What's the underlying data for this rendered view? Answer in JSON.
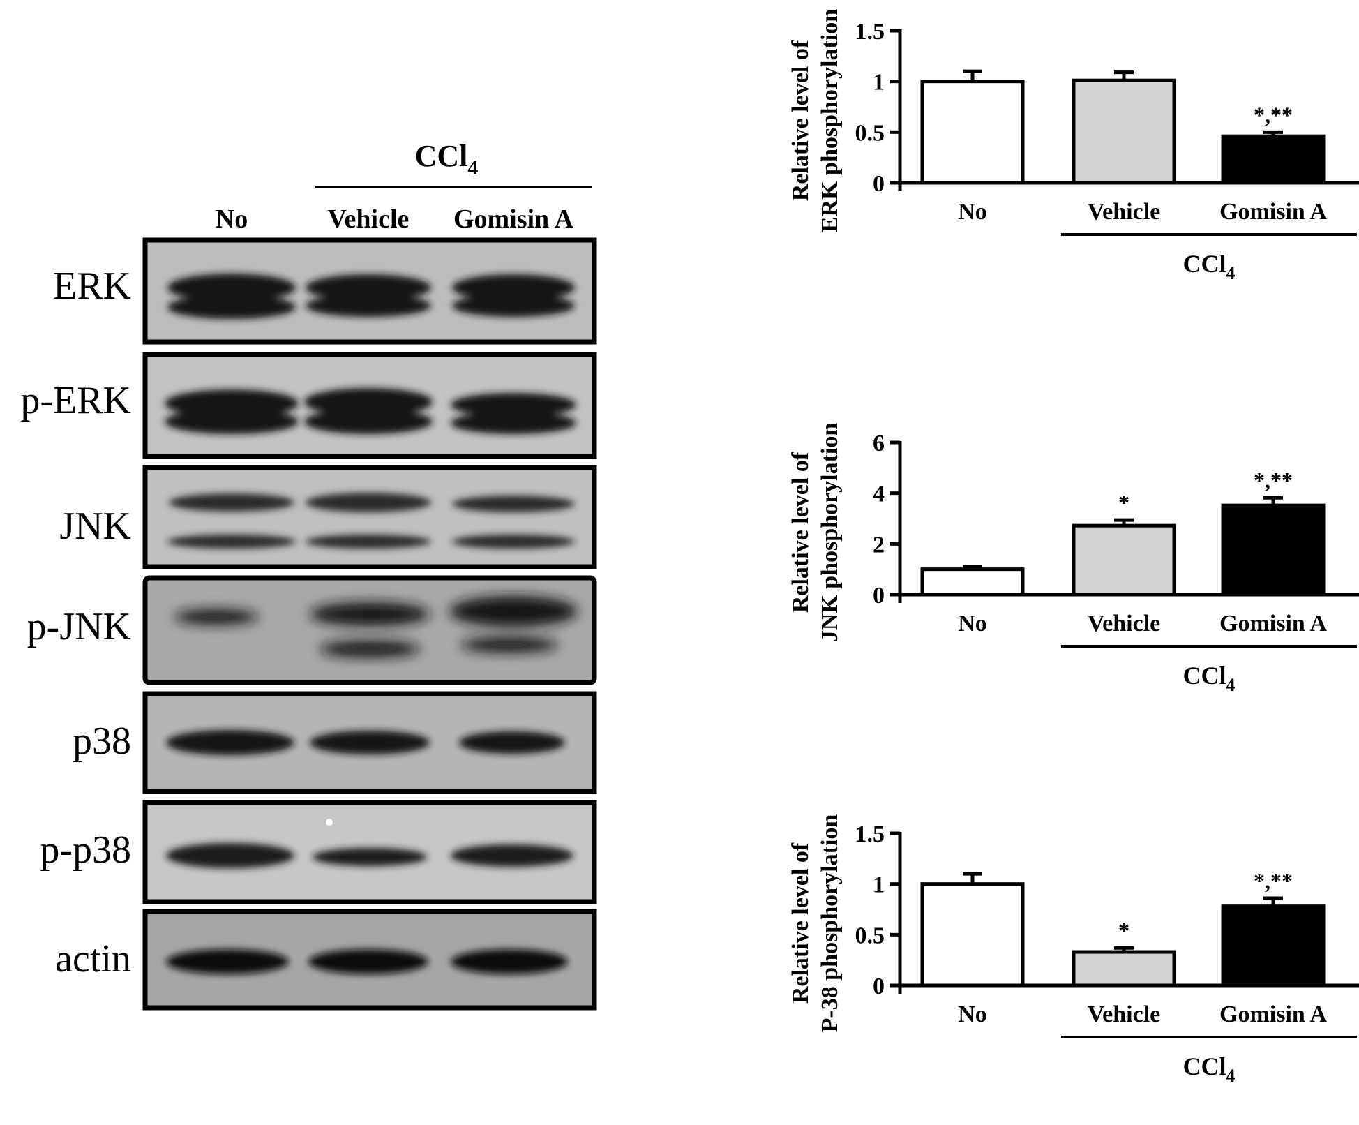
{
  "blot": {
    "treatment_label": "CCl",
    "treatment_sub": "4",
    "lanes": [
      "No",
      "Vehicle",
      "Gomisin A"
    ],
    "rows": [
      "ERK",
      "p-ERK",
      "JNK",
      "p-JNK",
      "p38",
      "p-p38",
      "actin"
    ]
  },
  "colors": {
    "No": "#ffffff",
    "Vehicle": "#d3d3d3",
    "Gomisin A": "#000000",
    "band": "#161616",
    "blot_bg": "#bcbcbc"
  },
  "chart_data": [
    {
      "type": "bar",
      "categories": [
        "No",
        "Vehicle",
        "Gomisin A"
      ],
      "values": [
        1.0,
        1.01,
        0.46
      ],
      "errors": [
        0.1,
        0.08,
        0.04
      ],
      "annotations": [
        "",
        "",
        "*,**"
      ],
      "ylabel_line1": "Relative level of",
      "ylabel_line2": "ERK phosphorylation",
      "ylim": [
        0,
        1.5
      ],
      "yticks": [
        0,
        0.5,
        1,
        1.5
      ],
      "ytick_labels": [
        "0",
        "0.5",
        "1",
        "1.5"
      ],
      "group_label": "CCl",
      "group_label_sub": "4",
      "group_categories": [
        "Vehicle",
        "Gomisin A"
      ]
    },
    {
      "type": "bar",
      "categories": [
        "No",
        "Vehicle",
        "Gomisin A"
      ],
      "values": [
        1.0,
        2.72,
        3.52
      ],
      "errors": [
        0.1,
        0.22,
        0.3
      ],
      "annotations": [
        "",
        "*",
        "*,**"
      ],
      "ylabel_line1": "Relative level of",
      "ylabel_line2": "JNK phosphorylation",
      "ylim": [
        0,
        6
      ],
      "yticks": [
        0,
        2,
        4,
        6
      ],
      "ytick_labels": [
        "0",
        "2",
        "4",
        "6"
      ],
      "group_label": "CCl",
      "group_label_sub": "4",
      "group_categories": [
        "Vehicle",
        "Gomisin A"
      ]
    },
    {
      "type": "bar",
      "categories": [
        "No",
        "Vehicle",
        "Gomisin A"
      ],
      "values": [
        1.0,
        0.33,
        0.78
      ],
      "errors": [
        0.1,
        0.04,
        0.08
      ],
      "annotations": [
        "",
        "*",
        "*,**"
      ],
      "ylabel_line1": "Relative level of",
      "ylabel_line2": "P-38 phosphorylation",
      "ylim": [
        0,
        1.5
      ],
      "yticks": [
        0,
        0.5,
        1,
        1.5
      ],
      "ytick_labels": [
        "0",
        "0.5",
        "1",
        "1.5"
      ],
      "group_label": "CCl",
      "group_label_sub": "4",
      "group_categories": [
        "Vehicle",
        "Gomisin A"
      ]
    }
  ]
}
